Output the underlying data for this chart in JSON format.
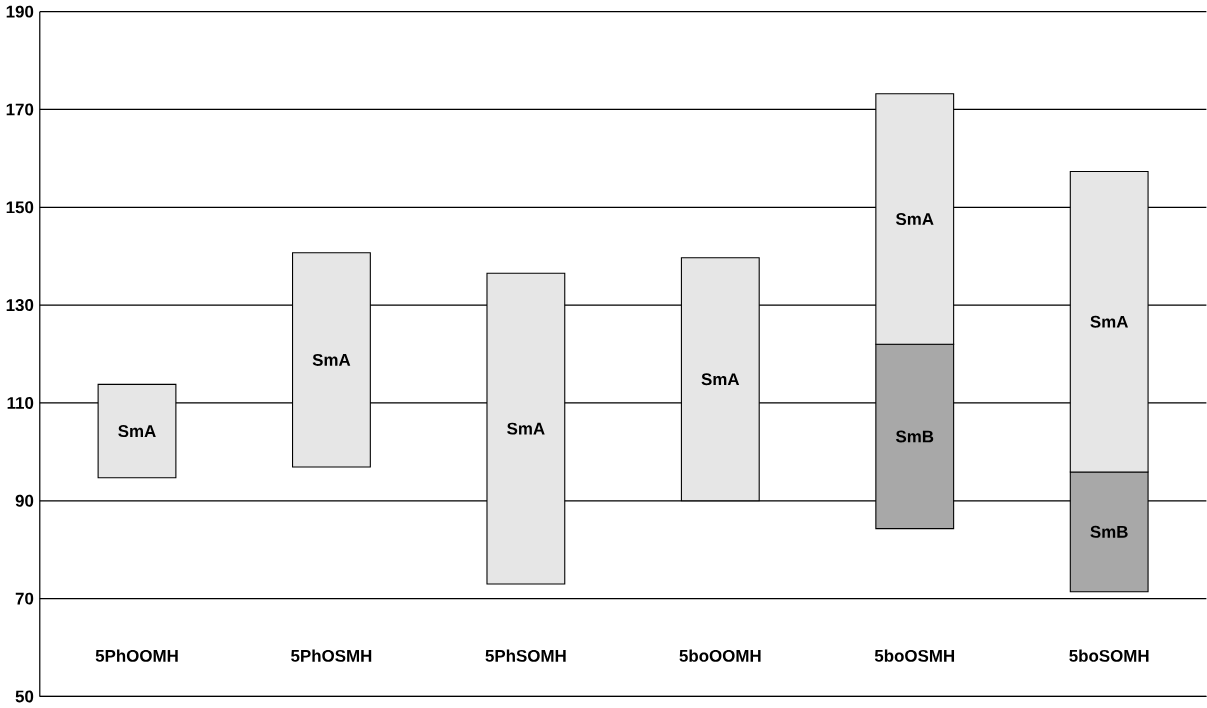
{
  "chart_data": {
    "type": "bar",
    "categories": [
      "5PhOOMH",
      "5PhOSMH",
      "5PhSOMH",
      "5boOOMH",
      "5boOSMH",
      "5boSOMH"
    ],
    "series": [
      {
        "name": "SmB",
        "color": "#a8a8a8",
        "base": [
          null,
          null,
          null,
          null,
          84.3,
          71.4
        ],
        "values": [
          null,
          null,
          null,
          null,
          37.7,
          24.5
        ]
      },
      {
        "name": "SmA",
        "color": "#e6e6e6",
        "base": [
          94.7,
          96.9,
          73.0,
          90.0,
          122.0,
          95.9
        ],
        "values": [
          19.1,
          43.8,
          63.5,
          49.7,
          51.2,
          61.4
        ]
      }
    ],
    "ylim": [
      50,
      190
    ],
    "yticks": [
      50,
      70,
      90,
      110,
      130,
      150,
      170,
      190
    ],
    "grid": "y"
  }
}
